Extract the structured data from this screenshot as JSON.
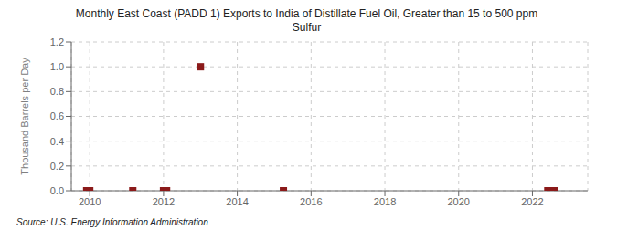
{
  "chart_data": {
    "type": "scatter",
    "title": "Monthly East Coast (PADD 1) Exports to India of Distillate Fuel Oil, Greater than 15 to 500 ppm\nSulfur",
    "ylabel": "Thousand Barrels per Day",
    "annotations": [
      "Source: U.S. Energy Information Administration"
    ],
    "x": [
      2009.917,
      2010.0,
      2011.167,
      2012.0,
      2012.083,
      2013.0,
      2015.25,
      2022.417,
      2022.583
    ],
    "values": [
      0.0,
      0.0,
      0.0,
      0.0,
      0.0,
      1.0,
      0.0,
      0.0,
      0.0
    ],
    "color": "#8b1a1a",
    "marker": "square",
    "xlim": [
      2009.5,
      2023.5
    ],
    "ylim": [
      0.0,
      1.2
    ],
    "xticks": [
      2010,
      2012,
      2014,
      2016,
      2018,
      2020,
      2022
    ],
    "yticks": [
      {
        "value": 0.0,
        "label": "0.0"
      },
      0.2,
      0.4,
      0.6,
      0.8,
      {
        "value": 1.0,
        "label": "1.0"
      },
      1.2
    ],
    "grid": true
  }
}
